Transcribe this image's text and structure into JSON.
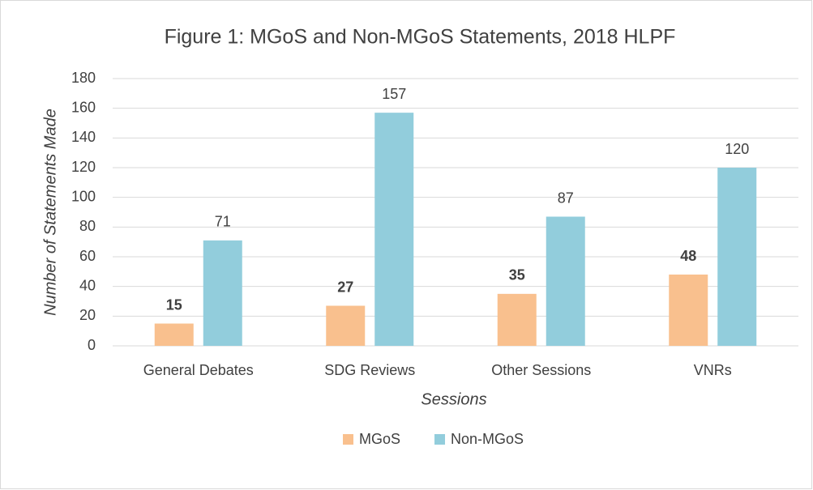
{
  "chart_data": {
    "type": "bar",
    "title": "Figure 1: MGoS and Non-MGoS Statements, 2018 HLPF",
    "x_label": "Sessions",
    "y_label": "Number of Statements Made",
    "categories": [
      "General Debates",
      "SDG Reviews",
      "Other Sessions",
      "VNRs"
    ],
    "series": [
      {
        "name": "MGoS",
        "color": "#f9c08e",
        "values": [
          15,
          27,
          35,
          48
        ]
      },
      {
        "name": "Non-MGoS",
        "color": "#92cddc",
        "values": [
          71,
          157,
          87,
          120
        ]
      }
    ],
    "ylim": [
      0,
      180
    ],
    "yticks": [
      0,
      20,
      40,
      60,
      80,
      100,
      120,
      140,
      160,
      180
    ],
    "grid": true,
    "legend": "bottom"
  }
}
